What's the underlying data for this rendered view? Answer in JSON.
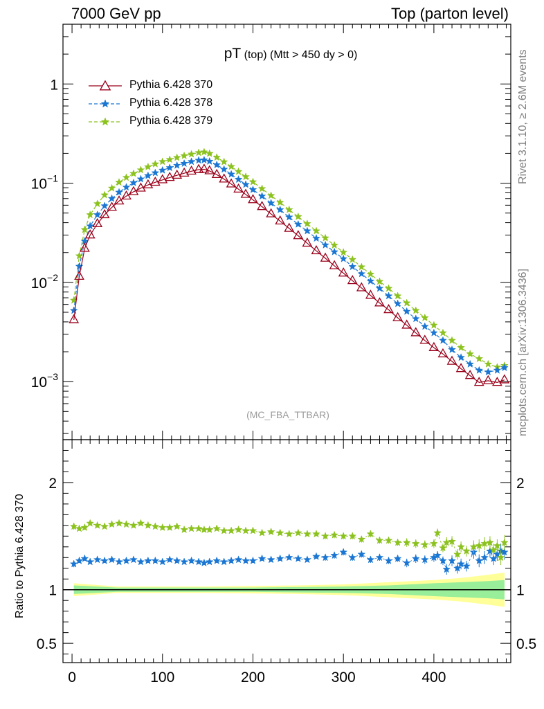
{
  "header": {
    "left": "7000 GeV pp",
    "right": "Top (parton level)"
  },
  "side_labels": {
    "rivet": "Rivet 3.1.10, ≥ 2.6M events",
    "mcplots": "mcplots.cern.ch [arXiv:1306.3436]"
  },
  "plot_title": {
    "main": "pT",
    "sub1": "(top)",
    "sub2": "(Mtt > 450 dy > 0)"
  },
  "analysis_label": "(MC_FBA_TTBAR)",
  "ratio_ylabel": "Ratio to Pythia 6.428 370",
  "legend": [
    {
      "label": "Pythia 6.428 370",
      "color": "#99001a",
      "marker": "open-triangle",
      "line": "solid"
    },
    {
      "label": "Pythia 6.428 378",
      "color": "#1a76d2",
      "marker": "star",
      "line": "dashed"
    },
    {
      "label": "Pythia 6.428 379",
      "color": "#8cc21f",
      "marker": "star",
      "line": "dashed"
    }
  ],
  "chart_data": [
    {
      "type": "line",
      "name": "main",
      "yscale": "log",
      "xlim": [
        -10,
        485
      ],
      "ylim": [
        0.00026,
        4.0
      ],
      "y_ticks": [
        0.001,
        0.01,
        0.1,
        1
      ],
      "y_tick_labels": [
        {
          "base": "10",
          "exp": "−3"
        },
        {
          "base": "10",
          "exp": "−2"
        },
        {
          "base": "10",
          "exp": "−1"
        },
        {
          "base": "1",
          "exp": ""
        }
      ],
      "series": [
        {
          "name": "Pythia 6.428 370",
          "x": [
            2,
            8,
            14,
            20,
            28,
            36,
            44,
            52,
            60,
            68,
            76,
            84,
            92,
            100,
            108,
            116,
            124,
            132,
            140,
            146,
            152,
            160,
            168,
            176,
            184,
            192,
            200,
            210,
            220,
            230,
            240,
            250,
            260,
            270,
            280,
            290,
            300,
            310,
            320,
            330,
            340,
            350,
            360,
            370,
            380,
            390,
            400,
            410,
            420,
            430,
            440,
            450,
            460,
            470,
            478
          ],
          "y": [
            0.0042,
            0.0115,
            0.022,
            0.03,
            0.039,
            0.048,
            0.057,
            0.066,
            0.074,
            0.082,
            0.089,
            0.096,
            0.102,
            0.108,
            0.114,
            0.12,
            0.126,
            0.132,
            0.137,
            0.138,
            0.133,
            0.122,
            0.11,
            0.098,
            0.087,
            0.077,
            0.068,
            0.058,
            0.049,
            0.0415,
            0.035,
            0.0295,
            0.0248,
            0.0208,
            0.0175,
            0.0147,
            0.0124,
            0.0104,
            0.0088,
            0.0074,
            0.0062,
            0.0053,
            0.0044,
            0.0037,
            0.0031,
            0.0026,
            0.0022,
            0.0019,
            0.0016,
            0.00135,
            0.00115,
            0.00098,
            0.00102,
            0.00098,
            0.00104
          ]
        },
        {
          "name": "Pythia 6.428 378",
          "x": [
            2,
            8,
            14,
            20,
            28,
            36,
            44,
            52,
            60,
            68,
            76,
            84,
            92,
            100,
            108,
            116,
            124,
            132,
            140,
            146,
            152,
            160,
            168,
            176,
            184,
            192,
            200,
            210,
            220,
            230,
            240,
            250,
            260,
            270,
            280,
            290,
            300,
            310,
            320,
            330,
            340,
            350,
            360,
            370,
            380,
            390,
            400,
            410,
            420,
            430,
            440,
            450,
            460,
            470,
            478
          ],
          "y": [
            0.0052,
            0.0145,
            0.026,
            0.037,
            0.048,
            0.059,
            0.07,
            0.081,
            0.091,
            0.101,
            0.11,
            0.119,
            0.127,
            0.135,
            0.143,
            0.151,
            0.158,
            0.165,
            0.17,
            0.171,
            0.166,
            0.153,
            0.138,
            0.123,
            0.109,
            0.097,
            0.086,
            0.074,
            0.063,
            0.054,
            0.0455,
            0.0385,
            0.033,
            0.0278,
            0.0238,
            0.0203,
            0.0173,
            0.0144,
            0.0122,
            0.0103,
            0.0087,
            0.0073,
            0.0061,
            0.0051,
            0.0043,
            0.0036,
            0.0031,
            0.0026,
            0.0021,
            0.00175,
            0.0015,
            0.0013,
            0.00125,
            0.0013,
            0.00138
          ]
        },
        {
          "name": "Pythia 6.428 379",
          "x": [
            2,
            8,
            14,
            20,
            28,
            36,
            44,
            52,
            60,
            68,
            76,
            84,
            92,
            100,
            108,
            116,
            124,
            132,
            140,
            146,
            152,
            160,
            168,
            176,
            184,
            192,
            200,
            210,
            220,
            230,
            240,
            250,
            260,
            270,
            280,
            290,
            300,
            310,
            320,
            330,
            340,
            350,
            360,
            370,
            380,
            390,
            400,
            410,
            420,
            430,
            440,
            450,
            460,
            470,
            478
          ],
          "y": [
            0.0066,
            0.0185,
            0.034,
            0.048,
            0.062,
            0.076,
            0.089,
            0.102,
            0.114,
            0.125,
            0.136,
            0.146,
            0.156,
            0.165,
            0.173,
            0.181,
            0.189,
            0.196,
            0.203,
            0.206,
            0.199,
            0.182,
            0.164,
            0.147,
            0.131,
            0.116,
            0.103,
            0.088,
            0.075,
            0.064,
            0.054,
            0.046,
            0.039,
            0.033,
            0.028,
            0.0237,
            0.0201,
            0.017,
            0.0143,
            0.0121,
            0.0102,
            0.0087,
            0.0073,
            0.0062,
            0.0052,
            0.0044,
            0.0037,
            0.0031,
            0.0026,
            0.0022,
            0.0019,
            0.0017,
            0.0015,
            0.0014,
            0.00145
          ]
        }
      ]
    },
    {
      "type": "line",
      "name": "ratio",
      "xlim": [
        -10,
        485
      ],
      "ylim": [
        0.32,
        2.4
      ],
      "xlabel": "",
      "ylabel": "Ratio to Pythia 6.428 370",
      "x_ticks": [
        0,
        100,
        200,
        300,
        400
      ],
      "y_ticks": [
        0.5,
        1,
        2
      ],
      "y_tick_labels": [
        "0.5",
        "1",
        "2"
      ],
      "reference_band": {
        "x": [
          2,
          50,
          100,
          150,
          200,
          250,
          300,
          350,
          400,
          430,
          460,
          478
        ],
        "inner_halfwidth": [
          0.04,
          0.02,
          0.02,
          0.02,
          0.02,
          0.025,
          0.03,
          0.04,
          0.06,
          0.07,
          0.08,
          0.09
        ],
        "outer_halfwidth": [
          0.06,
          0.03,
          0.03,
          0.03,
          0.035,
          0.04,
          0.05,
          0.07,
          0.09,
          0.11,
          0.14,
          0.16
        ],
        "inner_color": "#99ee99",
        "outer_color": "#ffff99"
      },
      "series": [
        {
          "name": "Pythia 6.428 378",
          "x": [
            2,
            8,
            14,
            20,
            28,
            36,
            44,
            52,
            60,
            68,
            76,
            84,
            92,
            100,
            108,
            116,
            124,
            132,
            140,
            146,
            152,
            160,
            168,
            176,
            184,
            192,
            200,
            210,
            220,
            230,
            240,
            250,
            260,
            270,
            280,
            290,
            300,
            310,
            320,
            330,
            340,
            350,
            360,
            370,
            380,
            390,
            400,
            404,
            410,
            414,
            420,
            426,
            430,
            436,
            444,
            450,
            456,
            462,
            466,
            470,
            474,
            478
          ],
          "y": [
            1.24,
            1.27,
            1.29,
            1.26,
            1.28,
            1.27,
            1.28,
            1.26,
            1.27,
            1.28,
            1.26,
            1.27,
            1.27,
            1.26,
            1.28,
            1.27,
            1.26,
            1.27,
            1.26,
            1.25,
            1.26,
            1.27,
            1.26,
            1.27,
            1.28,
            1.27,
            1.27,
            1.29,
            1.28,
            1.29,
            1.3,
            1.29,
            1.28,
            1.31,
            1.3,
            1.32,
            1.35,
            1.3,
            1.33,
            1.28,
            1.3,
            1.27,
            1.29,
            1.25,
            1.29,
            1.28,
            1.3,
            1.32,
            1.27,
            1.19,
            1.27,
            1.2,
            1.24,
            1.22,
            1.35,
            1.27,
            1.3,
            1.36,
            1.29,
            1.33,
            1.36,
            1.35
          ],
          "yerr": [
            0.03,
            0.02,
            0.02,
            0.02,
            0.02,
            0.02,
            0.02,
            0.02,
            0.02,
            0.02,
            0.02,
            0.02,
            0.02,
            0.02,
            0.02,
            0.02,
            0.02,
            0.02,
            0.02,
            0.02,
            0.02,
            0.02,
            0.02,
            0.02,
            0.02,
            0.02,
            0.02,
            0.02,
            0.02,
            0.02,
            0.02,
            0.02,
            0.02,
            0.02,
            0.03,
            0.03,
            0.03,
            0.03,
            0.03,
            0.03,
            0.03,
            0.03,
            0.03,
            0.04,
            0.04,
            0.04,
            0.04,
            0.04,
            0.04,
            0.05,
            0.05,
            0.05,
            0.05,
            0.05,
            0.06,
            0.06,
            0.06,
            0.06,
            0.06,
            0.06,
            0.07,
            0.07
          ]
        },
        {
          "name": "Pythia 6.428 379",
          "x": [
            2,
            8,
            14,
            20,
            28,
            36,
            44,
            52,
            60,
            68,
            76,
            84,
            92,
            100,
            108,
            116,
            124,
            132,
            140,
            146,
            152,
            160,
            168,
            176,
            184,
            192,
            200,
            210,
            220,
            230,
            240,
            250,
            260,
            270,
            280,
            290,
            300,
            310,
            320,
            330,
            340,
            350,
            360,
            370,
            380,
            390,
            400,
            404,
            410,
            414,
            420,
            426,
            430,
            436,
            444,
            450,
            456,
            462,
            466,
            470,
            474,
            478
          ],
          "y": [
            1.59,
            1.57,
            1.58,
            1.62,
            1.6,
            1.59,
            1.61,
            1.62,
            1.61,
            1.6,
            1.62,
            1.6,
            1.59,
            1.58,
            1.58,
            1.59,
            1.56,
            1.57,
            1.57,
            1.56,
            1.56,
            1.57,
            1.55,
            1.55,
            1.56,
            1.55,
            1.55,
            1.53,
            1.54,
            1.53,
            1.52,
            1.53,
            1.52,
            1.52,
            1.5,
            1.51,
            1.5,
            1.5,
            1.47,
            1.52,
            1.46,
            1.46,
            1.44,
            1.44,
            1.43,
            1.42,
            1.43,
            1.53,
            1.39,
            1.44,
            1.45,
            1.33,
            1.4,
            1.36,
            1.4,
            1.41,
            1.43,
            1.44,
            1.37,
            1.41,
            1.3,
            1.44
          ],
          "yerr": [
            0.03,
            0.02,
            0.02,
            0.02,
            0.02,
            0.02,
            0.02,
            0.02,
            0.02,
            0.02,
            0.02,
            0.02,
            0.02,
            0.02,
            0.02,
            0.02,
            0.02,
            0.02,
            0.02,
            0.02,
            0.02,
            0.02,
            0.02,
            0.02,
            0.02,
            0.02,
            0.02,
            0.02,
            0.02,
            0.02,
            0.02,
            0.02,
            0.02,
            0.02,
            0.03,
            0.03,
            0.03,
            0.03,
            0.03,
            0.03,
            0.03,
            0.03,
            0.03,
            0.04,
            0.04,
            0.04,
            0.04,
            0.04,
            0.04,
            0.05,
            0.05,
            0.05,
            0.05,
            0.05,
            0.06,
            0.06,
            0.06,
            0.06,
            0.06,
            0.06,
            0.07,
            0.07
          ]
        }
      ]
    }
  ]
}
